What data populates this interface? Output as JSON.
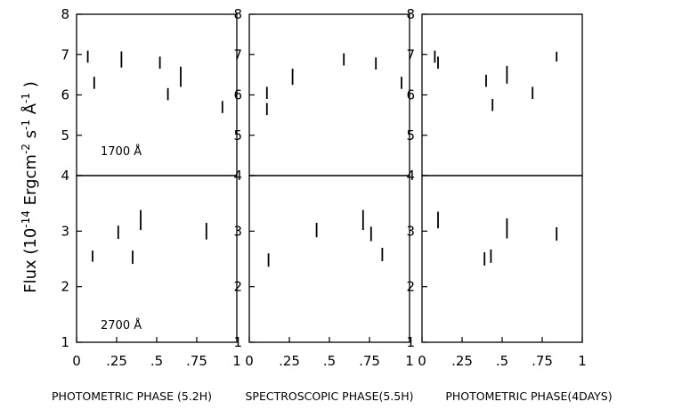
{
  "chart_data": {
    "type": "scatter",
    "ylabel": {
      "base": "Flux (10",
      "exp1": "-14",
      "mid1": " Ergcm",
      "exp2": "-2",
      "mid2": " s",
      "exp3": "-1",
      "mid3": " Å",
      "exp4": "-1",
      "tail": " )"
    },
    "x_tick_labels": [
      "0",
      ".25",
      ".5",
      ".75",
      "1"
    ],
    "x_ticks": [
      0,
      0.25,
      0.5,
      0.75,
      1
    ],
    "upper_y_tick_labels": [
      "4",
      "5",
      "6",
      "7",
      "8"
    ],
    "upper_y_ticks": [
      4,
      5,
      6,
      7,
      8
    ],
    "lower_y_tick_labels": [
      "1",
      "2",
      "3",
      "4"
    ],
    "lower_y_ticks": [
      1,
      2,
      3,
      4
    ],
    "upper_ylim": [
      4,
      8
    ],
    "lower_ylim": [
      1,
      4
    ],
    "xlim": [
      0,
      1
    ],
    "panels": [
      {
        "xlabel": "PHOTOMETRIC PHASE (5.2H)",
        "upper": {
          "annotation": "1700 Å",
          "points": [
            {
              "x": 0.07,
              "y": 6.95,
              "err": 0.15
            },
            {
              "x": 0.11,
              "y": 6.3,
              "err": 0.15
            },
            {
              "x": 0.28,
              "y": 6.88,
              "err": 0.2
            },
            {
              "x": 0.52,
              "y": 6.8,
              "err": 0.15
            },
            {
              "x": 0.57,
              "y": 6.02,
              "err": 0.15
            },
            {
              "x": 0.65,
              "y": 6.45,
              "err": 0.25
            },
            {
              "x": 0.91,
              "y": 5.7,
              "err": 0.15
            }
          ]
        },
        "lower": {
          "annotation": "2700 Å",
          "points": [
            {
              "x": 0.1,
              "y": 2.55,
              "err": 0.1
            },
            {
              "x": 0.26,
              "y": 2.98,
              "err": 0.12
            },
            {
              "x": 0.35,
              "y": 2.53,
              "err": 0.12
            },
            {
              "x": 0.4,
              "y": 3.2,
              "err": 0.18
            },
            {
              "x": 0.81,
              "y": 3.0,
              "err": 0.15
            }
          ]
        }
      },
      {
        "xlabel": "SPECTROSCOPIC PHASE(5.5H)",
        "upper": {
          "annotation": "",
          "points": [
            {
              "x": 0.11,
              "y": 6.05,
              "err": 0.15
            },
            {
              "x": 0.11,
              "y": 5.65,
              "err": 0.15
            },
            {
              "x": 0.27,
              "y": 6.45,
              "err": 0.2
            },
            {
              "x": 0.59,
              "y": 6.88,
              "err": 0.15
            },
            {
              "x": 0.79,
              "y": 6.78,
              "err": 0.15
            },
            {
              "x": 0.95,
              "y": 6.3,
              "err": 0.15
            }
          ]
        },
        "lower": {
          "annotation": "",
          "points": [
            {
              "x": 0.12,
              "y": 2.48,
              "err": 0.12
            },
            {
              "x": 0.42,
              "y": 3.02,
              "err": 0.13
            },
            {
              "x": 0.71,
              "y": 3.2,
              "err": 0.18
            },
            {
              "x": 0.76,
              "y": 2.95,
              "err": 0.13
            },
            {
              "x": 0.83,
              "y": 2.58,
              "err": 0.12
            }
          ]
        }
      },
      {
        "xlabel": "PHOTOMETRIC PHASE(4DAYS)",
        "upper": {
          "annotation": "",
          "points": [
            {
              "x": 0.08,
              "y": 6.95,
              "err": 0.15
            },
            {
              "x": 0.1,
              "y": 6.8,
              "err": 0.15
            },
            {
              "x": 0.4,
              "y": 6.35,
              "err": 0.15
            },
            {
              "x": 0.44,
              "y": 5.75,
              "err": 0.15
            },
            {
              "x": 0.53,
              "y": 6.5,
              "err": 0.22
            },
            {
              "x": 0.69,
              "y": 6.05,
              "err": 0.15
            },
            {
              "x": 0.84,
              "y": 6.95,
              "err": 0.12
            }
          ]
        },
        "lower": {
          "annotation": "",
          "points": [
            {
              "x": 0.1,
              "y": 3.2,
              "err": 0.15
            },
            {
              "x": 0.39,
              "y": 2.5,
              "err": 0.12
            },
            {
              "x": 0.43,
              "y": 2.55,
              "err": 0.12
            },
            {
              "x": 0.53,
              "y": 3.05,
              "err": 0.18
            },
            {
              "x": 0.84,
              "y": 2.95,
              "err": 0.12
            }
          ]
        }
      }
    ]
  }
}
